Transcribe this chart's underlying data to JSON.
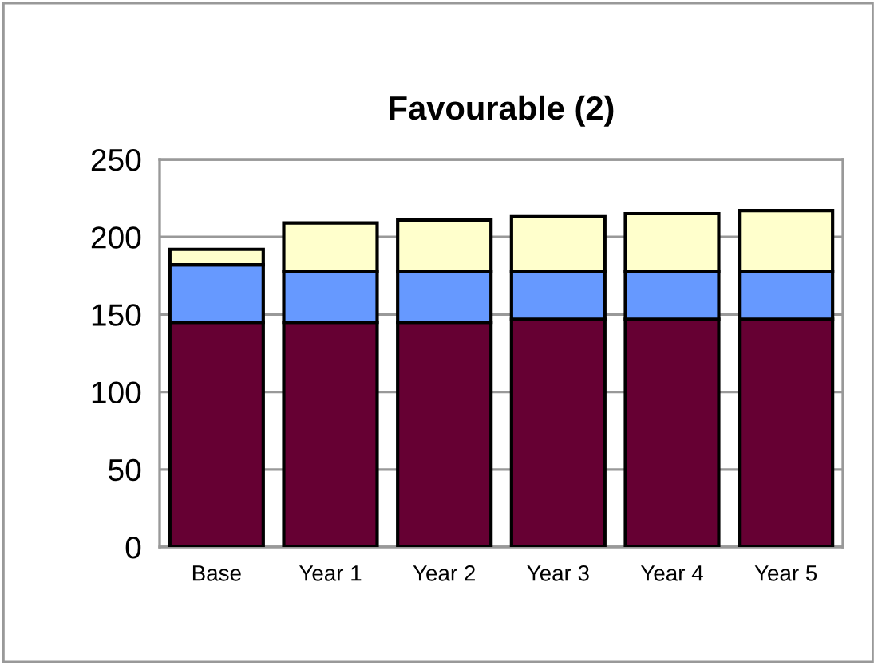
{
  "chart_data": {
    "type": "bar",
    "title": "Favourable (2)",
    "stacked": true,
    "categories": [
      "Base",
      "Year 1",
      "Year 2",
      "Year 3",
      "Year 4",
      "Year 5"
    ],
    "series": [
      {
        "color": "#660033",
        "values": [
          145,
          145,
          145,
          147,
          147,
          147
        ]
      },
      {
        "color": "#6699ff",
        "values": [
          37,
          33,
          33,
          31,
          31,
          31
        ]
      },
      {
        "color": "#ffffcc",
        "values": [
          10,
          31,
          33,
          35,
          37,
          39
        ]
      }
    ],
    "ylim": [
      0,
      250
    ],
    "yticks": [
      0,
      50,
      100,
      150,
      200,
      250
    ],
    "grid": "y",
    "legend": false
  }
}
